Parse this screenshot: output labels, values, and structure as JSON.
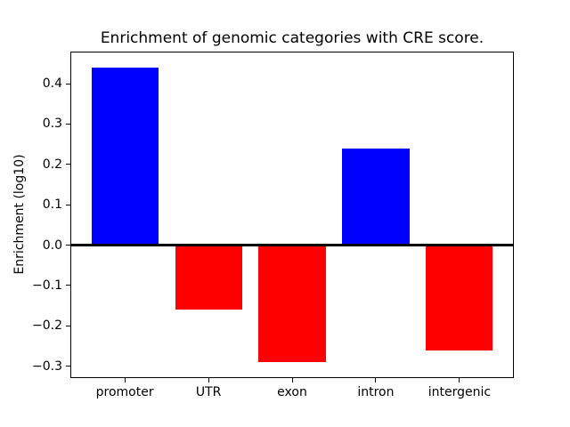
{
  "figure": {
    "background": "#ffffff"
  },
  "chart_data": {
    "type": "bar",
    "title": "Enrichment of genomic categories with CRE score.",
    "xlabel": "",
    "ylabel": "Enrichment (log10)",
    "categories": [
      "promoter",
      "UTR",
      "exon",
      "intron",
      "intergenic"
    ],
    "values": [
      0.44,
      -0.16,
      -0.29,
      0.24,
      -0.26
    ],
    "bar_colors": [
      "#0000ff",
      "#ff0000",
      "#ff0000",
      "#0000ff",
      "#ff0000"
    ],
    "positive_color": "#0000ff",
    "negative_color": "#ff0000",
    "ylim": [
      -0.327,
      0.477
    ],
    "xlim": [
      -0.64,
      4.64
    ],
    "bar_width": 0.8,
    "yticks": [
      0.4,
      0.3,
      0.2,
      0.1,
      0.0,
      -0.1,
      -0.2,
      -0.3
    ],
    "ytick_labels": [
      "0.4",
      "0.3",
      "0.2",
      "0.1",
      "0.0",
      "−0.1",
      "−0.2",
      "−0.3"
    ],
    "zero_line": true,
    "zero_line_color": "#000000",
    "grid": false,
    "legend": null
  }
}
